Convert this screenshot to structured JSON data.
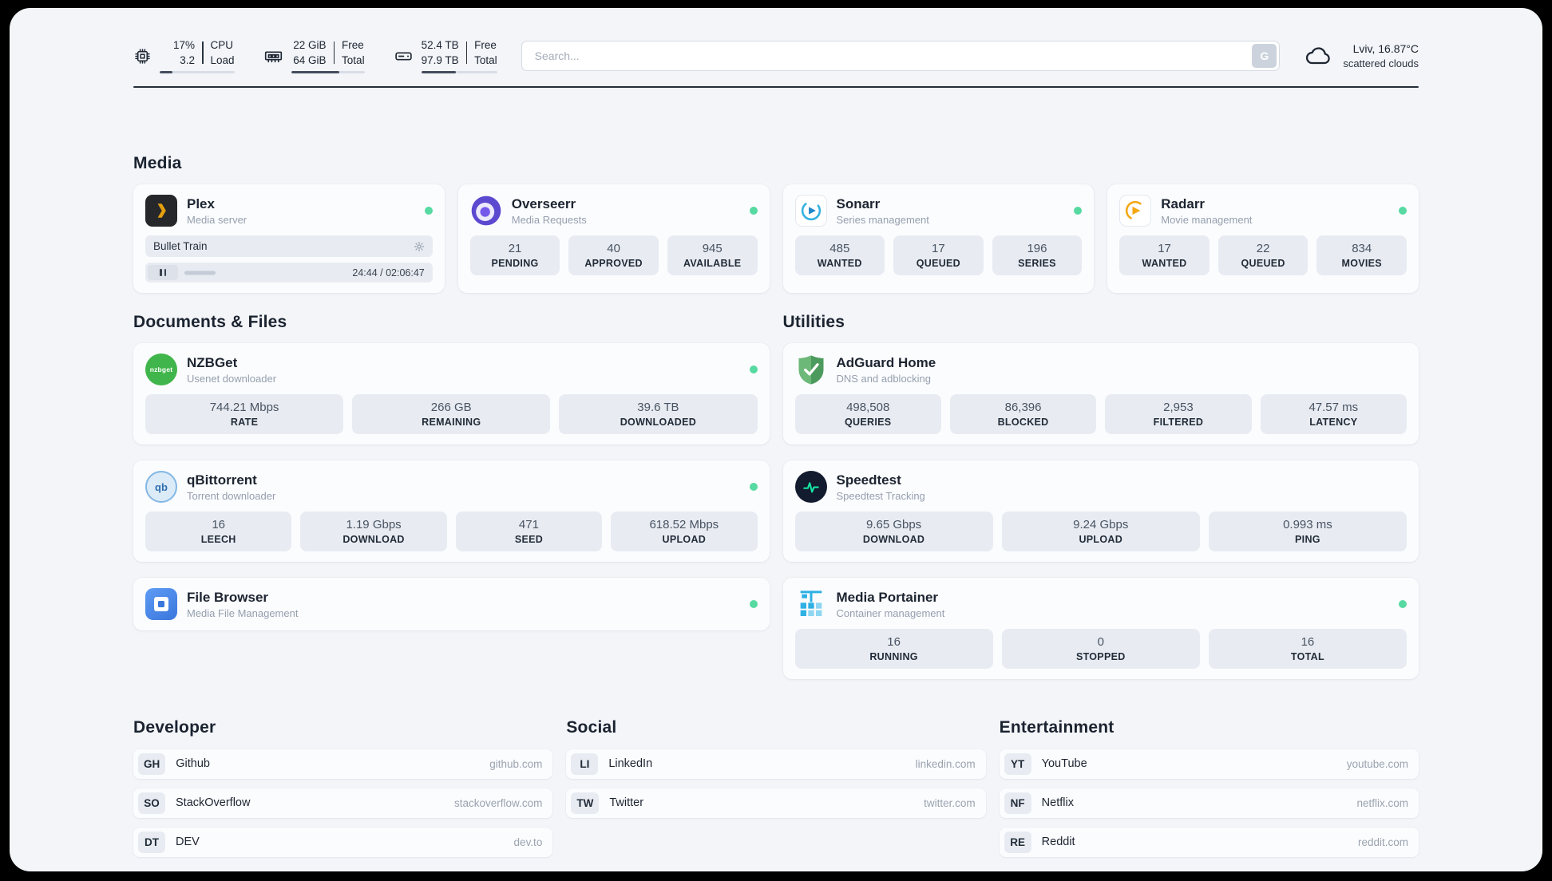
{
  "header": {
    "cpu": {
      "value_top": "17%",
      "value_bottom": "3.2",
      "label_top": "CPU",
      "label_bottom": "Load",
      "progress": 17
    },
    "ram": {
      "value_top": "22 GiB",
      "value_bottom": "64 GiB",
      "label_top": "Free",
      "label_bottom": "Total",
      "progress": 66
    },
    "disk": {
      "value_top": "52.4 TB",
      "value_bottom": "97.9 TB",
      "label_top": "Free",
      "label_bottom": "Total",
      "progress": 46
    },
    "search": {
      "placeholder": "Search...",
      "button_label": "G"
    },
    "weather": {
      "location": "Lviv, 16.87°C",
      "condition": "scattered clouds"
    }
  },
  "sections": {
    "media": {
      "title": "Media",
      "apps": [
        {
          "name": "Plex",
          "subtitle": "Media server",
          "icon": "plex-icon",
          "now_playing": {
            "title": "Bullet Train",
            "time": "24:44 / 02:06:47",
            "progress": 19.5
          }
        },
        {
          "name": "Overseerr",
          "subtitle": "Media Requests",
          "icon": "overseerr-icon",
          "stats": [
            {
              "value": "21",
              "label": "PENDING"
            },
            {
              "value": "40",
              "label": "APPROVED"
            },
            {
              "value": "945",
              "label": "AVAILABLE"
            }
          ]
        },
        {
          "name": "Sonarr",
          "subtitle": "Series management",
          "icon": "sonarr-icon",
          "stats": [
            {
              "value": "485",
              "label": "WANTED"
            },
            {
              "value": "17",
              "label": "QUEUED"
            },
            {
              "value": "196",
              "label": "SERIES"
            }
          ]
        },
        {
          "name": "Radarr",
          "subtitle": "Movie management",
          "icon": "radarr-icon",
          "stats": [
            {
              "value": "17",
              "label": "WANTED"
            },
            {
              "value": "22",
              "label": "QUEUED"
            },
            {
              "value": "834",
              "label": "MOVIES"
            }
          ]
        }
      ]
    },
    "documents": {
      "title": "Documents & Files",
      "apps": [
        {
          "name": "NZBGet",
          "subtitle": "Usenet downloader",
          "icon": "nzbget-icon",
          "stats": [
            {
              "value": "744.21 Mbps",
              "label": "RATE"
            },
            {
              "value": "266 GB",
              "label": "REMAINING"
            },
            {
              "value": "39.6 TB",
              "label": "DOWNLOADED"
            }
          ]
        },
        {
          "name": "qBittorrent",
          "subtitle": "Torrent downloader",
          "icon": "qbittorrent-icon",
          "stats": [
            {
              "value": "16",
              "label": "LEECH"
            },
            {
              "value": "1.19 Gbps",
              "label": "DOWNLOAD"
            },
            {
              "value": "471",
              "label": "SEED"
            },
            {
              "value": "618.52 Mbps",
              "label": "UPLOAD"
            }
          ]
        },
        {
          "name": "File Browser",
          "subtitle": "Media File Management",
          "icon": "filebrowser-icon",
          "stats": []
        }
      ]
    },
    "utilities": {
      "title": "Utilities",
      "apps": [
        {
          "name": "AdGuard Home",
          "subtitle": "DNS and adblocking",
          "icon": "adguard-shield-icon",
          "stats": [
            {
              "value": "498,508",
              "label": "QUERIES"
            },
            {
              "value": "86,396",
              "label": "BLOCKED"
            },
            {
              "value": "2,953",
              "label": "FILTERED"
            },
            {
              "value": "47.57 ms",
              "label": "LATENCY"
            }
          ]
        },
        {
          "name": "Speedtest",
          "subtitle": "Speedtest Tracking",
          "icon": "speedtest-icon",
          "stats": [
            {
              "value": "9.65 Gbps",
              "label": "DOWNLOAD"
            },
            {
              "value": "9.24 Gbps",
              "label": "UPLOAD"
            },
            {
              "value": "0.993 ms",
              "label": "PING"
            }
          ]
        },
        {
          "name": "Media Portainer",
          "subtitle": "Container management",
          "icon": "portainer-icon",
          "stats": [
            {
              "value": "16",
              "label": "RUNNING"
            },
            {
              "value": "0",
              "label": "STOPPED"
            },
            {
              "value": "16",
              "label": "TOTAL"
            }
          ]
        }
      ]
    },
    "bookmarks": [
      {
        "title": "Developer",
        "items": [
          {
            "abbr": "GH",
            "name": "Github",
            "url": "github.com"
          },
          {
            "abbr": "SO",
            "name": "StackOverflow",
            "url": "stackoverflow.com"
          },
          {
            "abbr": "DT",
            "name": "DEV",
            "url": "dev.to"
          }
        ]
      },
      {
        "title": "Social",
        "items": [
          {
            "abbr": "LI",
            "name": "LinkedIn",
            "url": "linkedin.com"
          },
          {
            "abbr": "TW",
            "name": "Twitter",
            "url": "twitter.com"
          }
        ]
      },
      {
        "title": "Entertainment",
        "items": [
          {
            "abbr": "YT",
            "name": "YouTube",
            "url": "youtube.com"
          },
          {
            "abbr": "NF",
            "name": "Netflix",
            "url": "netflix.com"
          },
          {
            "abbr": "RE",
            "name": "Reddit",
            "url": "reddit.com"
          }
        ]
      }
    ]
  },
  "colors": {
    "status_online": "#57d9a2",
    "page_background": "#f3f5f9",
    "card_background": "#fbfcfe",
    "stat_box_background": "#e8ecf2",
    "plex_accent": "#e5a00d",
    "sonarr_accent": "#33b1e0",
    "radarr_accent": "#f3a712",
    "nzbget_accent": "#40b54b",
    "adguard_accent": "#5aa968",
    "speedtest_accent": "#16e7a5",
    "portainer_accent": "#2fb1e3"
  },
  "icons": {
    "cpu": "chip-icon",
    "ram": "memory-icon",
    "disk": "drive-icon",
    "weather": "cloud-icon",
    "settings": "gear-icon",
    "playback": "pause-icon",
    "status": "online-dot",
    "search_engine": "g-button"
  }
}
